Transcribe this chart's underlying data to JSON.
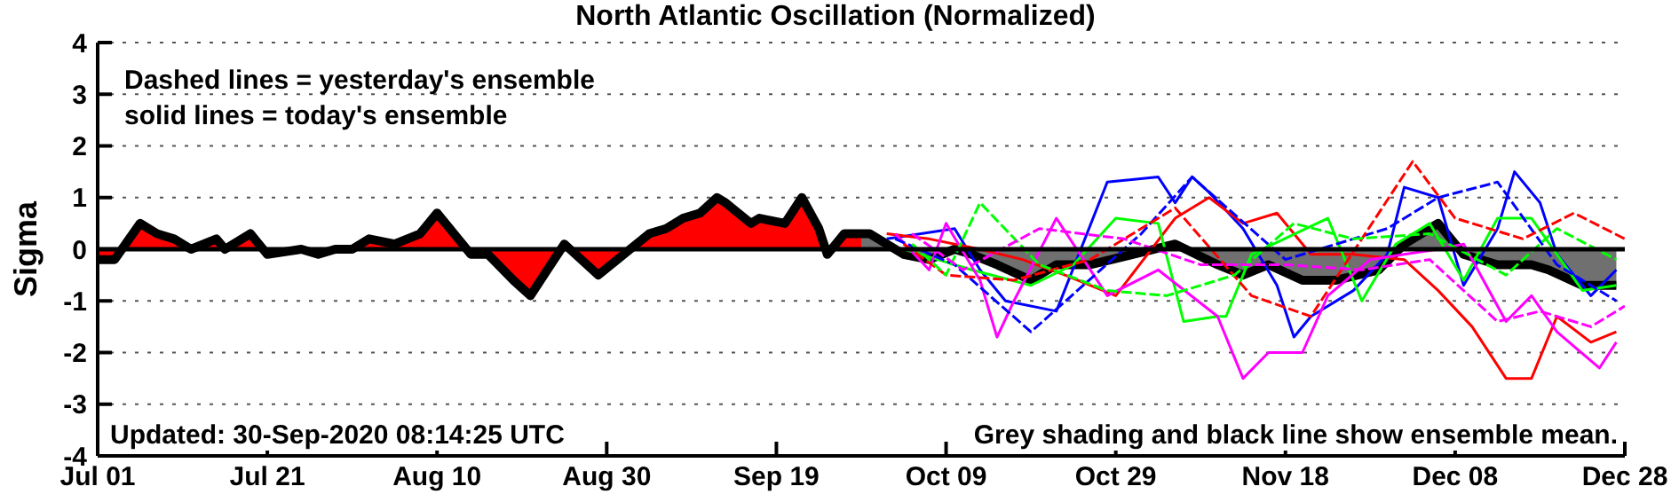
{
  "chart_data": {
    "type": "line",
    "title": "North Atlantic Oscillation (Normalized)",
    "ylabel": "Sigma",
    "annotations": [
      "Dashed lines = yesterday's ensemble",
      "solid lines = today's ensemble",
      "Updated: 30-Sep-2020 08:14:25 UTC",
      "Grey shading and black line show ensemble mean."
    ],
    "xlim": [
      "2020-07-01",
      "2020-12-28"
    ],
    "xticks": [
      {
        "value": "2020-07-01",
        "label": "Jul 01"
      },
      {
        "value": "2020-07-21",
        "label": "Jul 21"
      },
      {
        "value": "2020-08-10",
        "label": "Aug 10"
      },
      {
        "value": "2020-08-30",
        "label": "Aug 30"
      },
      {
        "value": "2020-09-19",
        "label": "Sep 19"
      },
      {
        "value": "2020-10-09",
        "label": "Oct 09"
      },
      {
        "value": "2020-10-29",
        "label": "Oct 29"
      },
      {
        "value": "2020-11-18",
        "label": "Nov 18"
      },
      {
        "value": "2020-12-08",
        "label": "Dec 08"
      },
      {
        "value": "2020-12-28",
        "label": "Dec 28"
      }
    ],
    "ylim": [
      -4,
      4
    ],
    "yticks": [
      -4,
      -3,
      -2,
      -1,
      0,
      1,
      2,
      3,
      4
    ],
    "grid": "y",
    "legend": false,
    "marker": "none",
    "ref_lines": [
      {
        "axis": "y",
        "value": 0,
        "color": "#000000"
      }
    ],
    "series": [
      {
        "type": "area",
        "color": "#ff0000",
        "x": [
          "2020-07-01",
          "2020-07-03",
          "2020-07-06",
          "2020-07-08",
          "2020-07-10",
          "2020-07-12",
          "2020-07-15",
          "2020-07-16",
          "2020-07-19",
          "2020-07-21",
          "2020-07-25",
          "2020-07-27",
          "2020-07-29",
          "2020-07-31",
          "2020-08-02",
          "2020-08-05",
          "2020-08-08",
          "2020-08-10",
          "2020-08-14",
          "2020-08-16",
          "2020-08-19",
          "2020-08-21",
          "2020-08-23",
          "2020-08-25",
          "2020-08-27",
          "2020-08-29",
          "2020-09-01",
          "2020-09-04",
          "2020-09-06",
          "2020-09-08",
          "2020-09-10",
          "2020-09-12",
          "2020-09-13",
          "2020-09-16",
          "2020-09-17",
          "2020-09-20",
          "2020-09-22",
          "2020-09-24",
          "2020-09-25",
          "2020-09-27",
          "2020-09-29"
        ],
        "values": [
          -0.2,
          -0.2,
          0.5,
          0.3,
          0.2,
          0,
          0.2,
          0,
          0.3,
          -0.1,
          0,
          -0.1,
          0,
          0,
          0.2,
          0.1,
          0.3,
          0.7,
          -0.1,
          -0.1,
          -0.6,
          -0.9,
          -0.4,
          0.1,
          -0.2,
          -0.5,
          -0.1,
          0.3,
          0.4,
          0.6,
          0.7,
          1,
          0.9,
          0.5,
          0.6,
          0.5,
          1,
          0.4,
          -0.1,
          0.3,
          0.3
        ]
      },
      {
        "type": "area",
        "color": "#707070",
        "x": [
          "2020-09-29",
          "2020-09-30",
          "2020-10-04",
          "2020-10-07",
          "2020-10-10",
          "2020-10-12",
          "2020-10-15",
          "2020-10-19",
          "2020-10-22",
          "2020-10-26",
          "2020-10-31",
          "2020-11-05",
          "2020-11-10",
          "2020-11-13",
          "2020-11-16",
          "2020-11-20",
          "2020-11-24",
          "2020-11-29",
          "2020-12-02",
          "2020-12-06",
          "2020-12-09",
          "2020-12-13",
          "2020-12-17",
          "2020-12-19",
          "2020-12-23",
          "2020-12-27"
        ],
        "values": [
          0.3,
          0.3,
          -0.1,
          -0.2,
          0,
          -0.1,
          -0.3,
          -0.6,
          -0.3,
          -0.3,
          -0.1,
          0.1,
          -0.3,
          -0.5,
          -0.3,
          -0.6,
          -0.6,
          -0.4,
          0.1,
          0.5,
          -0.1,
          -0.3,
          -0.3,
          -0.4,
          -0.7,
          -0.7
        ]
      },
      {
        "color": "#0000ff",
        "line_style": "solid",
        "x": [
          "2020-10-02",
          "2020-10-10",
          "2020-10-13",
          "2020-10-16",
          "2020-10-22",
          "2020-10-28",
          "2020-11-03",
          "2020-11-05",
          "2020-11-07",
          "2020-11-09",
          "2020-11-13",
          "2020-11-17",
          "2020-11-19",
          "2020-11-21",
          "2020-11-26",
          "2020-11-30",
          "2020-12-02",
          "2020-12-06",
          "2020-12-09",
          "2020-12-13",
          "2020-12-15",
          "2020-12-18",
          "2020-12-20",
          "2020-12-24",
          "2020-12-27"
        ],
        "values": [
          0.2,
          0.4,
          -0.4,
          -1,
          -1.2,
          1.3,
          1.4,
          0.9,
          1.4,
          1.1,
          0.4,
          -0.7,
          -1.7,
          -1.3,
          -0.8,
          -0.1,
          1.2,
          1,
          -0.7,
          0.4,
          1.5,
          0.9,
          -0.1,
          -0.9,
          -0.4
        ]
      },
      {
        "color": "#ff0000",
        "line_style": "solid",
        "x": [
          "2020-10-02",
          "2020-10-07",
          "2020-10-13",
          "2020-10-18",
          "2020-10-23",
          "2020-10-29",
          "2020-11-05",
          "2020-11-09",
          "2020-11-13",
          "2020-11-17",
          "2020-11-21",
          "2020-11-26",
          "2020-12-02",
          "2020-12-06",
          "2020-12-10",
          "2020-12-14",
          "2020-12-17",
          "2020-12-20",
          "2020-12-24",
          "2020-12-27"
        ],
        "values": [
          0.3,
          0.2,
          0,
          -0.2,
          -0.5,
          -0.9,
          0.6,
          1,
          0.5,
          0.7,
          -0.1,
          -0.1,
          -0.2,
          -0.8,
          -1.5,
          -2.5,
          -2.5,
          -1.3,
          -1.8,
          -1.6
        ]
      },
      {
        "color": "#00ff00",
        "line_style": "solid",
        "x": [
          "2020-10-04",
          "2020-10-08",
          "2020-10-12",
          "2020-10-19",
          "2020-10-24",
          "2020-10-29",
          "2020-11-03",
          "2020-11-06",
          "2020-11-10",
          "2020-11-11",
          "2020-11-14",
          "2020-11-23",
          "2020-11-27",
          "2020-12-01",
          "2020-12-05",
          "2020-12-09",
          "2020-12-13",
          "2020-12-17",
          "2020-12-20",
          "2020-12-23",
          "2020-12-27"
        ],
        "values": [
          0,
          -0.2,
          -0.4,
          -0.7,
          -0.3,
          0.6,
          0.5,
          -1.4,
          -1.3,
          -1.3,
          -0.1,
          0.6,
          -1,
          0.1,
          0.5,
          -0.6,
          0.6,
          0.6,
          -0.1,
          -0.8,
          -0.7
        ]
      },
      {
        "color": "#ff00ff",
        "line_style": "solid",
        "x": [
          "2020-10-03",
          "2020-10-07",
          "2020-10-09",
          "2020-10-13",
          "2020-10-15",
          "2020-10-17",
          "2020-10-22",
          "2020-10-28",
          "2020-11-03",
          "2020-11-10",
          "2020-11-13",
          "2020-11-16",
          "2020-11-20",
          "2020-11-23",
          "2020-11-28",
          "2020-12-02",
          "2020-12-06",
          "2020-12-09",
          "2020-12-14",
          "2020-12-17",
          "2020-12-20",
          "2020-12-25",
          "2020-12-27"
        ],
        "values": [
          0.3,
          -0.4,
          0.5,
          -0.6,
          -1.7,
          -1,
          0.6,
          -0.9,
          -0.4,
          -1.3,
          -2.5,
          -2,
          -2,
          -0.9,
          -0.2,
          -0.1,
          0,
          0.1,
          -1.4,
          -0.9,
          -1.6,
          -2.3,
          -1.8
        ]
      },
      {
        "color": "#0000ff",
        "line_style": "dashed",
        "x": [
          "2020-10-03",
          "2020-10-10",
          "2020-10-19",
          "2020-11-01",
          "2020-11-07",
          "2020-11-18",
          "2020-11-30",
          "2020-12-06",
          "2020-12-13",
          "2020-12-20",
          "2020-12-27"
        ],
        "values": [
          0.2,
          -0.3,
          -1.6,
          0.3,
          1.4,
          -0.2,
          0.4,
          1,
          1.3,
          -0.3,
          -1
        ]
      },
      {
        "color": "#ff0000",
        "line_style": "dashed",
        "x": [
          "2020-10-04",
          "2020-10-09",
          "2020-10-17",
          "2020-10-26",
          "2020-11-05",
          "2020-11-14",
          "2020-11-21",
          "2020-12-03",
          "2020-12-08",
          "2020-12-16",
          "2020-12-22",
          "2020-12-28"
        ],
        "values": [
          0.1,
          -0.5,
          -0.6,
          -0.2,
          0.8,
          -0.9,
          -1.3,
          1.7,
          0.6,
          0.2,
          0.7,
          0.2
        ]
      },
      {
        "color": "#00ff00",
        "line_style": "dashed",
        "x": [
          "2020-10-05",
          "2020-10-09",
          "2020-10-13",
          "2020-10-20",
          "2020-10-28",
          "2020-11-04",
          "2020-11-12",
          "2020-11-19",
          "2020-11-26",
          "2020-12-05",
          "2020-12-14",
          "2020-12-20",
          "2020-12-27"
        ],
        "values": [
          0.1,
          -0.5,
          0.9,
          -0.3,
          -0.8,
          -0.9,
          -0.5,
          0.5,
          0.2,
          0.3,
          -0.5,
          0.4,
          -0.2
        ]
      },
      {
        "color": "#ff00ff",
        "line_style": "dashed",
        "x": [
          "2020-10-05",
          "2020-10-11",
          "2020-10-20",
          "2020-10-30",
          "2020-11-08",
          "2020-11-18",
          "2020-11-27",
          "2020-12-05",
          "2020-12-13",
          "2020-12-18",
          "2020-12-24",
          "2020-12-28"
        ],
        "values": [
          0.3,
          -0.4,
          0.4,
          0.2,
          -0.3,
          -0.3,
          -0.4,
          -0.2,
          -1.4,
          -1.2,
          -1.5,
          -1.1
        ]
      }
    ]
  }
}
